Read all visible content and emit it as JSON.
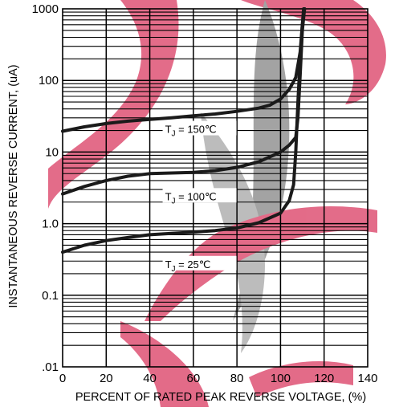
{
  "chart_data": {
    "type": "line",
    "xlabel": "PERCENT OF RATED PEAK REVERSE VOLTAGE, (%)",
    "ylabel": "INSTANTANEOUS REVERSE CURRENT, (uA)",
    "xlim": [
      0,
      140
    ],
    "ylim": [
      0.01,
      1000
    ],
    "y_scale": "log",
    "grid": true,
    "x_ticks": [
      "0",
      "20",
      "40",
      "60",
      "80",
      "100",
      "120",
      "140"
    ],
    "y_ticks": [
      {
        "value": 1000,
        "label": "1000"
      },
      {
        "value": 100,
        "label": "100"
      },
      {
        "value": 10,
        "label": "10"
      },
      {
        "value": 1,
        "label": "1.0"
      },
      {
        "value": 0.1,
        "label": "0.1"
      },
      {
        "value": 0.01,
        "label": ".01"
      }
    ],
    "series": [
      {
        "name": "T J = 150℃",
        "label_main": "T",
        "label_sub": "J",
        "label_rest": " = 150℃",
        "label_at": [
          47,
          20
        ],
        "points": [
          [
            0,
            19.5
          ],
          [
            10,
            22.5
          ],
          [
            20,
            25
          ],
          [
            30,
            27
          ],
          [
            40,
            28.5
          ],
          [
            50,
            30
          ],
          [
            60,
            32
          ],
          [
            70,
            34
          ],
          [
            80,
            37
          ],
          [
            90,
            41
          ],
          [
            95,
            45
          ],
          [
            100,
            55
          ],
          [
            104,
            75
          ],
          [
            107,
            110
          ],
          [
            109,
            250
          ],
          [
            110,
            600
          ],
          [
            110.6,
            1000
          ]
        ]
      },
      {
        "name": "T J = 100℃",
        "label_main": "T",
        "label_sub": "J",
        "label_rest": " = 100℃",
        "label_at": [
          47,
          2.3
        ],
        "points": [
          [
            0,
            2.6
          ],
          [
            10,
            3.3
          ],
          [
            20,
            4.0
          ],
          [
            30,
            4.6
          ],
          [
            40,
            5.0
          ],
          [
            50,
            5.1
          ],
          [
            60,
            5.2
          ],
          [
            70,
            5.5
          ],
          [
            80,
            6.1
          ],
          [
            90,
            7.3
          ],
          [
            100,
            10
          ],
          [
            104,
            12.5
          ],
          [
            107,
            16
          ],
          [
            108,
            30
          ],
          [
            109,
            120
          ],
          [
            110,
            500
          ],
          [
            111,
            1000
          ]
        ]
      },
      {
        "name": "T J = 25℃",
        "label_main": "T",
        "label_sub": "J",
        "label_rest": " = 25℃",
        "label_at": [
          47,
          0.26
        ],
        "points": [
          [
            0,
            0.4
          ],
          [
            10,
            0.5
          ],
          [
            20,
            0.58
          ],
          [
            30,
            0.64
          ],
          [
            40,
            0.7
          ],
          [
            50,
            0.73
          ],
          [
            60,
            0.76
          ],
          [
            70,
            0.8
          ],
          [
            80,
            0.87
          ],
          [
            90,
            1.03
          ],
          [
            100,
            1.4
          ],
          [
            104,
            2.1
          ],
          [
            106,
            3.5
          ],
          [
            107,
            10
          ],
          [
            108,
            50
          ],
          [
            109,
            200
          ],
          [
            110,
            600
          ],
          [
            111,
            1000
          ]
        ]
      }
    ]
  }
}
